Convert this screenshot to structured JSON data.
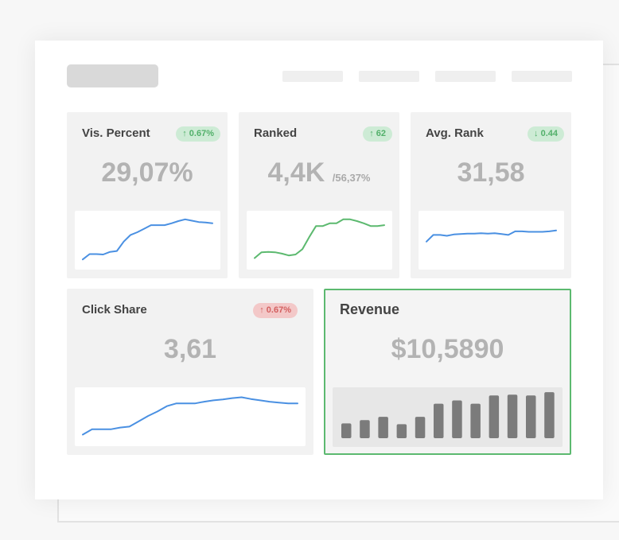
{
  "cards": [
    {
      "title": "Vis. Percent",
      "badge": "↑ 0.67%",
      "value": "29,07%",
      "sub": "",
      "line_color": "#4a90e2",
      "trend": [
        5,
        17,
        17,
        16,
        22,
        24,
        45,
        60,
        66,
        74,
        82,
        82,
        82,
        86,
        91,
        95,
        92,
        89,
        88,
        86
      ]
    },
    {
      "title": "Ranked",
      "badge": "↑ 62",
      "value": "4,4K",
      "sub": "/56,37%",
      "line_color": "#5cb96f",
      "trend": [
        8,
        21,
        22,
        21,
        18,
        14,
        16,
        28,
        55,
        80,
        80,
        86,
        86,
        95,
        95,
        91,
        86,
        80,
        80,
        82
      ]
    },
    {
      "title": "Avg. Rank",
      "badge": "↓ 0.44",
      "value": "31,58",
      "sub": "",
      "line_color": "#4a90e2",
      "trend": [
        45,
        60,
        60,
        58,
        61,
        62,
        63,
        63,
        64,
        63,
        64,
        62,
        60,
        68,
        68,
        67,
        67,
        67,
        68,
        70
      ]
    },
    {
      "title": "Click Share",
      "badge": "↑ 0.67%",
      "value": "3,61",
      "sub": "",
      "line_color": "#4a90e2",
      "trend": [
        8,
        20,
        20,
        20,
        24,
        26,
        38,
        50,
        60,
        72,
        78,
        78,
        78,
        82,
        85,
        87,
        90,
        92,
        88,
        85,
        82,
        80,
        78,
        78
      ]
    }
  ],
  "revenue": {
    "title": "Revenue",
    "value": "$10,5890",
    "bar_color": "#7b7b7b",
    "bars": [
      18,
      22,
      26,
      17,
      26,
      42,
      46,
      42,
      52,
      53,
      52,
      56
    ]
  }
}
